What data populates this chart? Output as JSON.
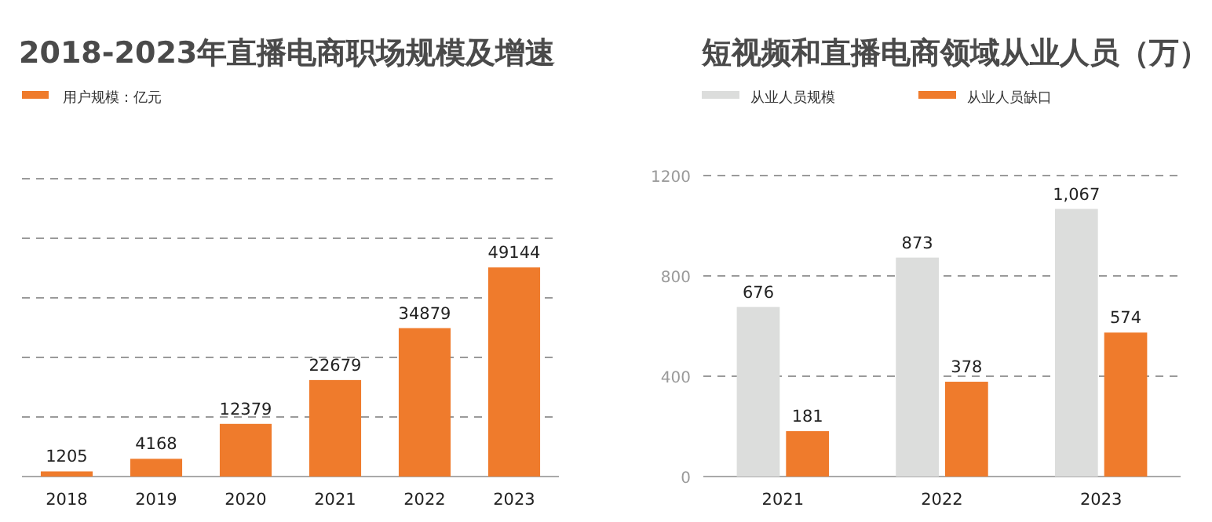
{
  "chart_data": [
    {
      "type": "bar",
      "title": "2018-2023年直播电商职场规模及增速",
      "categories": [
        "2018",
        "2019",
        "2020",
        "2021",
        "2022",
        "2023"
      ],
      "series": [
        {
          "name": "用户规模：亿元",
          "color": "#ef7b2c",
          "values": [
            1205,
            4168,
            12379,
            22679,
            34879,
            49144
          ]
        }
      ],
      "ylim": [
        0,
        70000
      ],
      "yticks": [
        {
          "value": 0,
          "label": null
        },
        {
          "value": 14000,
          "label": null
        },
        {
          "value": 28000,
          "label": null
        },
        {
          "value": 42000,
          "label": null
        },
        {
          "value": 56000,
          "label": null
        },
        {
          "value": 70000,
          "label": null
        }
      ],
      "tick_labels": "x",
      "grid": "y",
      "legend": "top left",
      "data_labels": true
    },
    {
      "type": "bar",
      "title": "短视频和直播电商领域从业人员（万）",
      "categories": [
        "2021",
        "2022",
        "2023"
      ],
      "series": [
        {
          "name": "从业人员规模",
          "color": "#dcdddc",
          "values": [
            676,
            873,
            1067
          ],
          "value_labels": [
            "676",
            "873",
            "1,067"
          ]
        },
        {
          "name": "从业人员缺口",
          "color": "#ef7b2c",
          "values": [
            181,
            378,
            574
          ],
          "value_labels": [
            "181",
            "378",
            "574"
          ]
        }
      ],
      "ylim": [
        0,
        1200
      ],
      "yticks": [
        0,
        400,
        800,
        1200
      ],
      "grid": "y",
      "legend": "top left"
    }
  ]
}
